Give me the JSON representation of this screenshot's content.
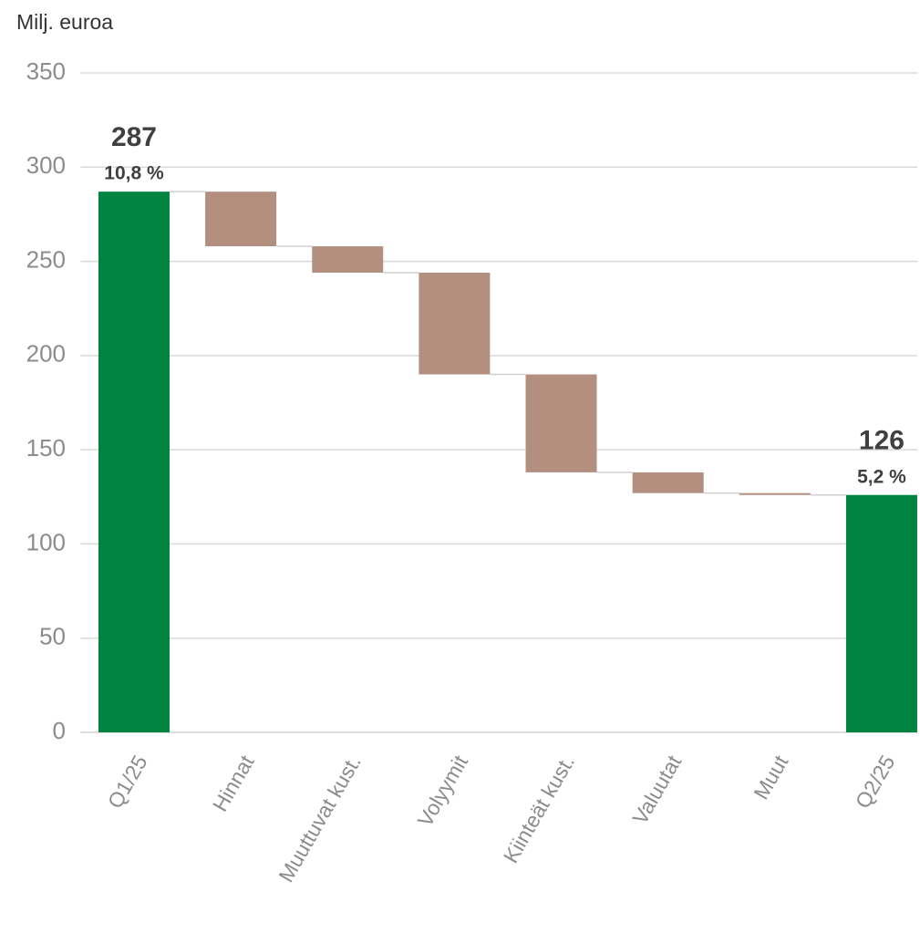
{
  "chart_data": {
    "type": "waterfall",
    "title": "Milj. euroa",
    "categories": [
      "Q1/25",
      "Hinnat",
      "Muuttuvat kust.",
      "Volyymit",
      "Kiinteät kust.",
      "Valuutat",
      "Muut",
      "Q2/25"
    ],
    "values": [
      287,
      -29,
      -14,
      -54,
      -52,
      -11,
      -1,
      126
    ],
    "is_total": [
      true,
      false,
      false,
      false,
      false,
      false,
      false,
      true
    ],
    "subtitles": [
      "10,8 %",
      null,
      null,
      null,
      null,
      null,
      null,
      "5,2 %"
    ],
    "total_color": "#00843f",
    "delta_color": "#b38f80",
    "ylim": [
      0,
      350
    ],
    "yticks": [
      0,
      50,
      100,
      150,
      200,
      250,
      300,
      350
    ],
    "grid": true
  }
}
